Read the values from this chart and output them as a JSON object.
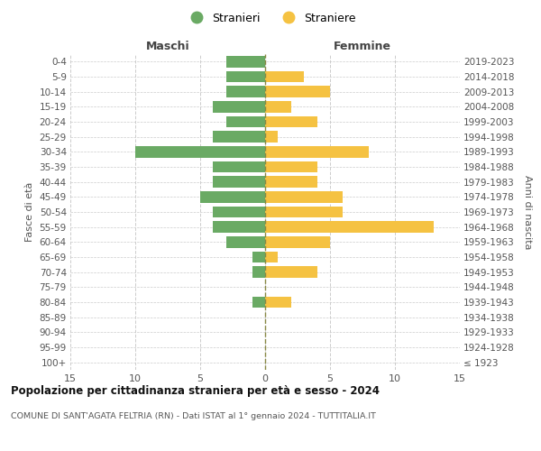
{
  "age_groups": [
    "100+",
    "95-99",
    "90-94",
    "85-89",
    "80-84",
    "75-79",
    "70-74",
    "65-69",
    "60-64",
    "55-59",
    "50-54",
    "45-49",
    "40-44",
    "35-39",
    "30-34",
    "25-29",
    "20-24",
    "15-19",
    "10-14",
    "5-9",
    "0-4"
  ],
  "birth_years": [
    "≤ 1923",
    "1924-1928",
    "1929-1933",
    "1934-1938",
    "1939-1943",
    "1944-1948",
    "1949-1953",
    "1954-1958",
    "1959-1963",
    "1964-1968",
    "1969-1973",
    "1974-1978",
    "1979-1983",
    "1984-1988",
    "1989-1993",
    "1994-1998",
    "1999-2003",
    "2004-2008",
    "2009-2013",
    "2014-2018",
    "2019-2023"
  ],
  "maschi": [
    0,
    0,
    0,
    0,
    1,
    0,
    1,
    1,
    3,
    4,
    4,
    5,
    4,
    4,
    10,
    4,
    3,
    4,
    3,
    3,
    3
  ],
  "femmine": [
    0,
    0,
    0,
    0,
    2,
    0,
    4,
    1,
    5,
    13,
    6,
    6,
    4,
    4,
    8,
    1,
    4,
    2,
    5,
    3,
    0
  ],
  "maschi_color": "#6aaa64",
  "femmine_color": "#f5c242",
  "title": "Popolazione per cittadinanza straniera per età e sesso - 2024",
  "subtitle": "COMUNE DI SANT'AGATA FELTRIA (RN) - Dati ISTAT al 1° gennaio 2024 - TUTTITALIA.IT",
  "ylabel_left": "Fasce di età",
  "ylabel_right": "Anni di nascita",
  "label_maschi": "Maschi",
  "label_femmine": "Femmine",
  "legend_stranieri": "Stranieri",
  "legend_straniere": "Straniere",
  "xlim": 15,
  "background_color": "#ffffff",
  "grid_color": "#cccccc"
}
